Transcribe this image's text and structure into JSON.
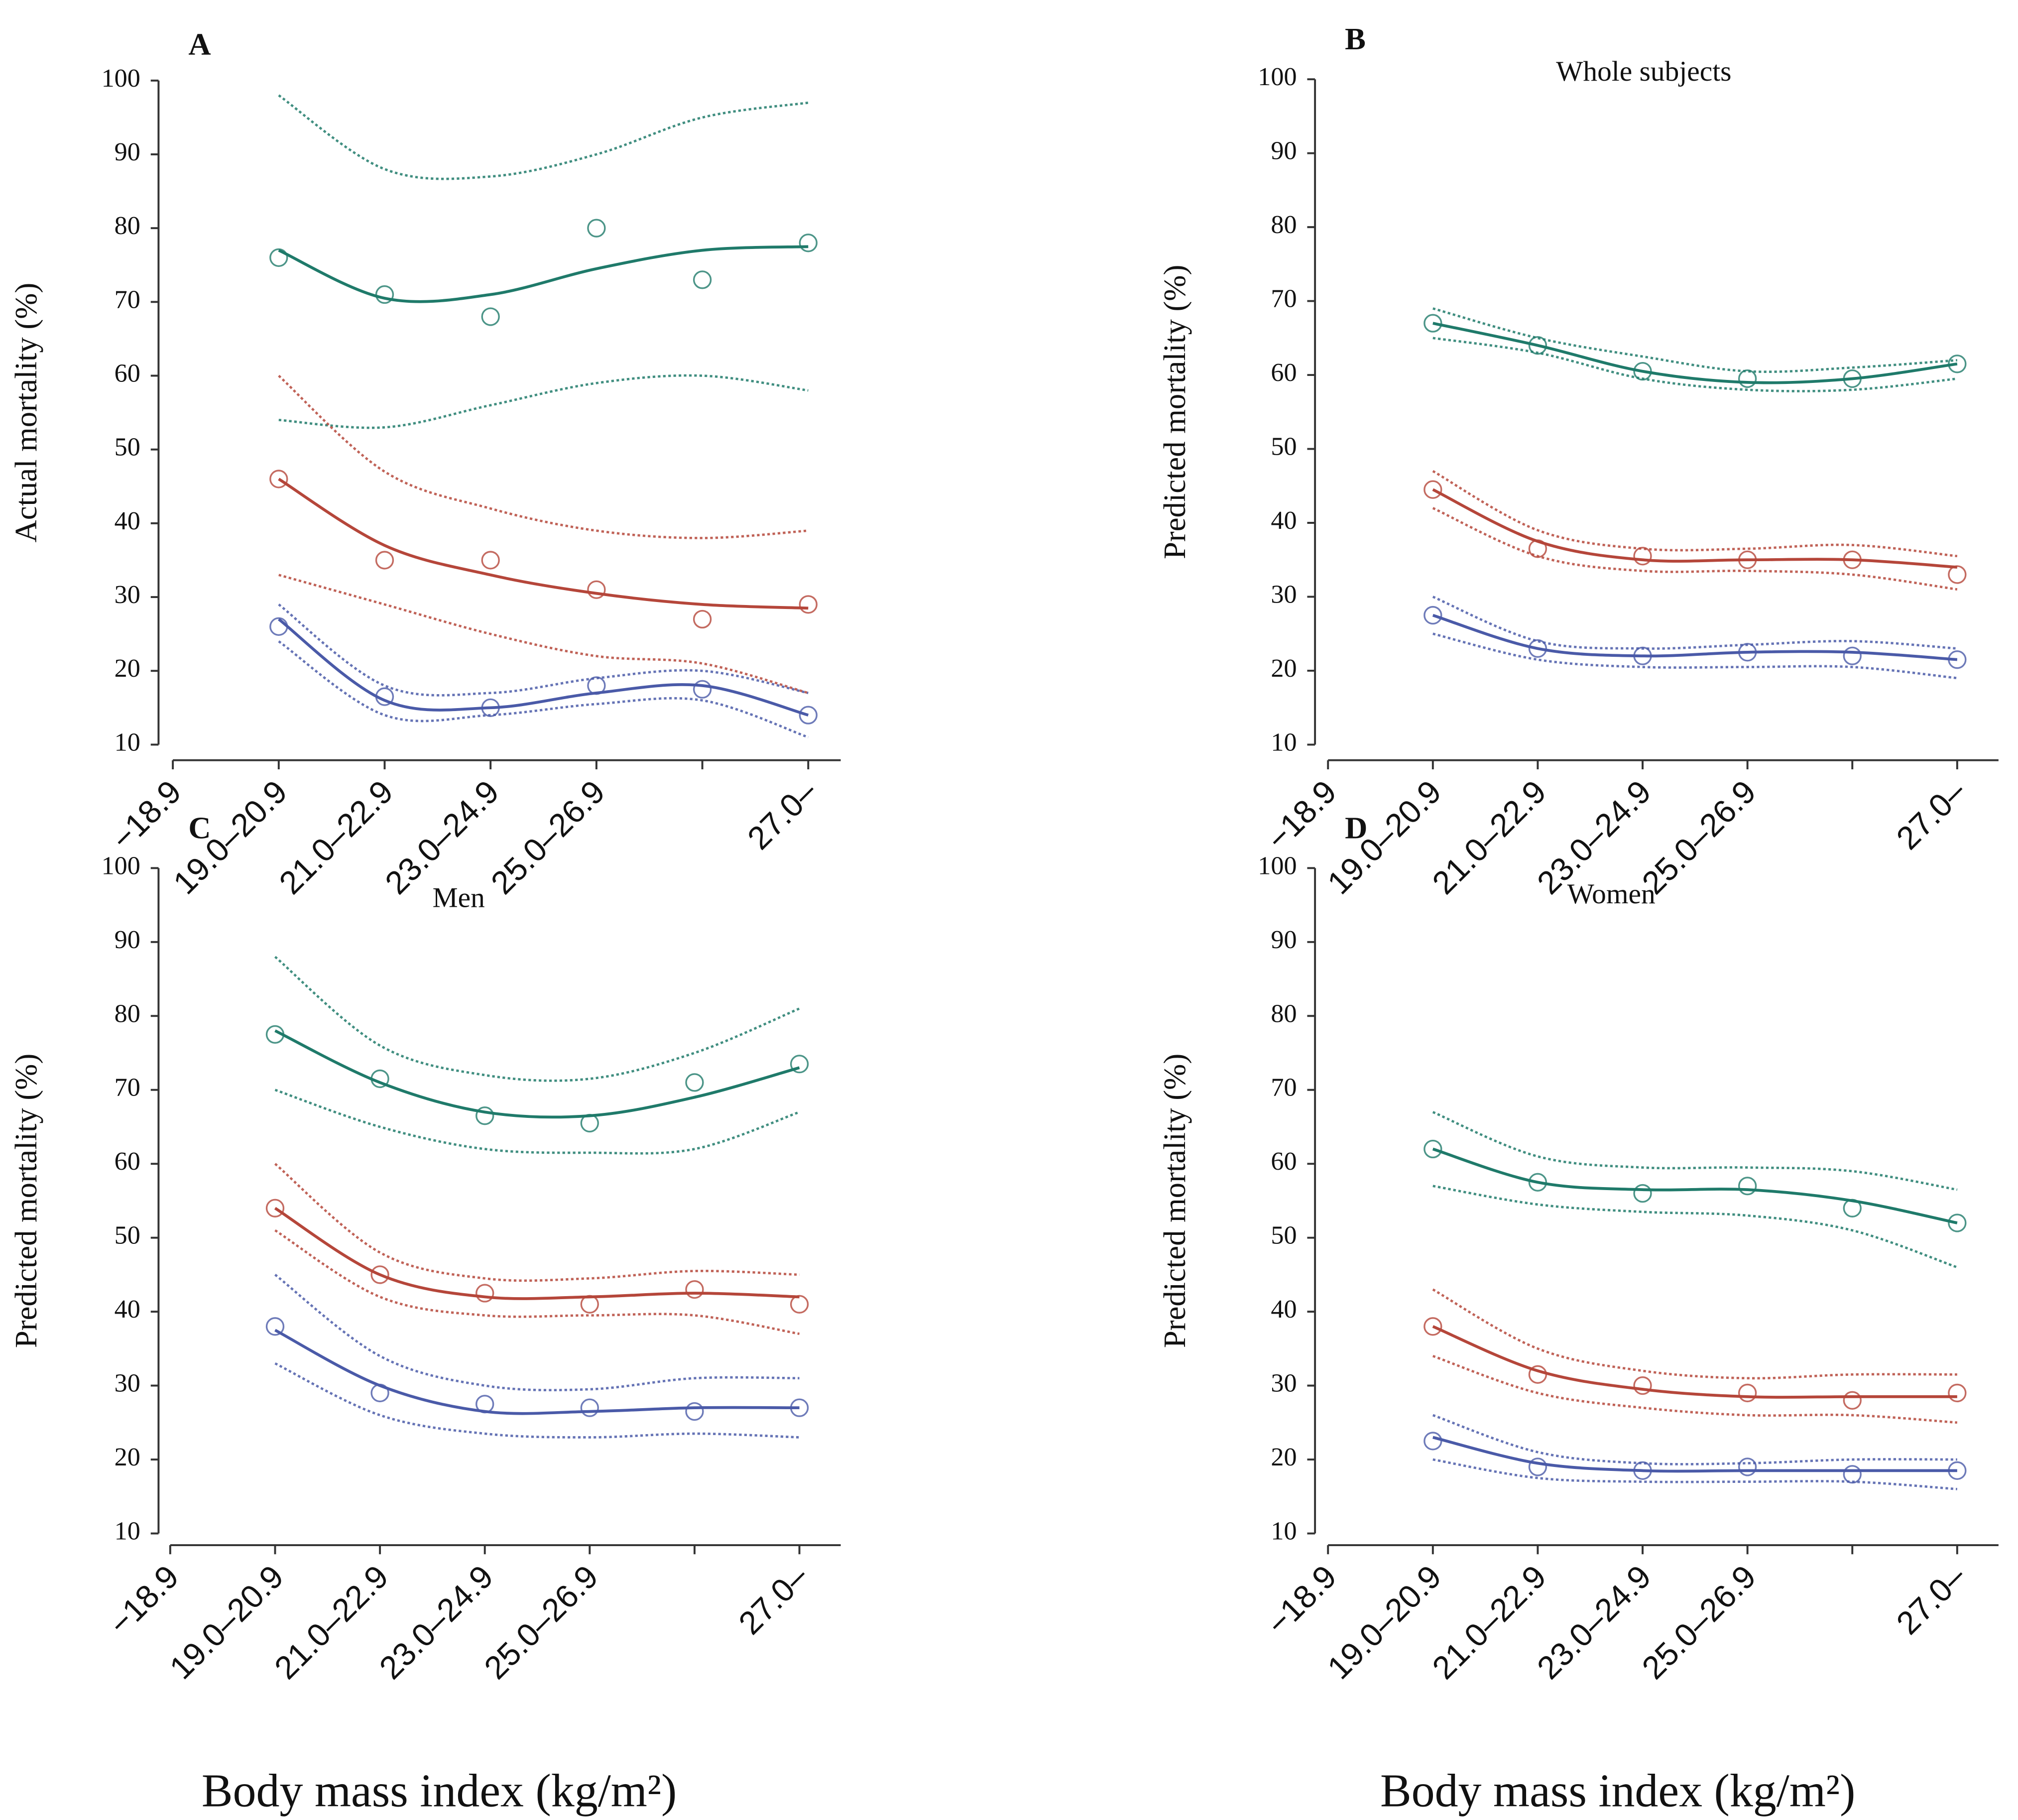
{
  "chart_data": [
    {
      "type": "line",
      "letter": "A",
      "ylabel": "Actual mortality (%)",
      "categories": [
        "−18.9",
        "19.0–20.9",
        "21.0–22.9",
        "23.0–24.9",
        "25.0–26.9",
        null,
        "27.0–"
      ],
      "ylim": [
        10,
        100
      ],
      "yticks": [
        10,
        20,
        30,
        40,
        50,
        60,
        70,
        80,
        90,
        100
      ],
      "groups": [
        {
          "color": "#1f7a6a",
          "points": [
            null,
            76,
            71,
            68,
            80,
            73,
            78
          ],
          "fit": [
            null,
            77,
            70.5,
            71,
            74.5,
            77,
            77.5
          ],
          "upper": [
            null,
            98,
            88,
            87,
            90,
            95,
            97
          ],
          "lower": [
            null,
            54,
            53,
            56,
            59,
            60,
            58
          ]
        },
        {
          "color": "#b5463a",
          "points": [
            null,
            46,
            35,
            35,
            31,
            27,
            29
          ],
          "fit": [
            null,
            46,
            37,
            33,
            30.5,
            29,
            28.5
          ],
          "upper": [
            null,
            60,
            47,
            42,
            39,
            38,
            39
          ],
          "lower": [
            null,
            33,
            29,
            25,
            22,
            21,
            17
          ]
        },
        {
          "color": "#4a5aa8",
          "points": [
            null,
            26,
            16.5,
            15,
            18,
            17.5,
            14
          ],
          "fit": [
            null,
            27,
            16,
            15,
            17,
            18,
            14
          ],
          "upper": [
            null,
            29,
            18,
            17,
            19,
            20,
            17
          ],
          "lower": [
            null,
            24,
            14,
            14,
            15.5,
            16,
            11
          ]
        }
      ]
    },
    {
      "type": "line",
      "letter": "B",
      "subtitle": "Whole subjects",
      "ylabel": "Predicted mortality (%)",
      "categories": [
        "−18.9",
        "19.0–20.9",
        "21.0–22.9",
        "23.0–24.9",
        "25.0–26.9",
        null,
        "27.0–"
      ],
      "ylim": [
        10,
        100
      ],
      "yticks": [
        10,
        20,
        30,
        40,
        50,
        60,
        70,
        80,
        90,
        100
      ],
      "groups": [
        {
          "color": "#1f7a6a",
          "points": [
            null,
            67,
            64,
            60.5,
            59.5,
            59.5,
            61.5
          ],
          "fit": [
            null,
            67,
            64,
            60.5,
            59,
            59.5,
            61.5
          ],
          "upper": [
            null,
            69,
            65,
            62.5,
            60.5,
            61,
            62
          ],
          "lower": [
            null,
            65,
            63,
            59.5,
            58,
            58,
            59.5
          ]
        },
        {
          "color": "#b5463a",
          "points": [
            null,
            44.5,
            36.5,
            35.5,
            35,
            35,
            33
          ],
          "fit": [
            null,
            44.5,
            37.5,
            35,
            35,
            35,
            34
          ],
          "upper": [
            null,
            47,
            39,
            36.5,
            36.5,
            37,
            35.5
          ],
          "lower": [
            null,
            42,
            35.5,
            33.5,
            33.5,
            33,
            31
          ]
        },
        {
          "color": "#4a5aa8",
          "points": [
            null,
            27.5,
            23,
            22,
            22.5,
            22,
            21.5
          ],
          "fit": [
            null,
            27.5,
            23,
            22,
            22.5,
            22.5,
            21.5
          ],
          "upper": [
            null,
            30,
            24,
            23,
            23.5,
            24,
            23
          ],
          "lower": [
            null,
            25,
            21.5,
            20.5,
            20.5,
            20.5,
            19
          ]
        }
      ]
    },
    {
      "type": "line",
      "letter": "C",
      "subtitle": "Men",
      "ylabel": "Predicted mortality (%)",
      "xlabel": "Body mass index (kg/m²)",
      "categories": [
        "−18.9",
        "19.0–20.9",
        "21.0–22.9",
        "23.0–24.9",
        "25.0–26.9",
        null,
        "27.0–"
      ],
      "ylim": [
        10,
        100
      ],
      "yticks": [
        10,
        20,
        30,
        40,
        50,
        60,
        70,
        80,
        90,
        100
      ],
      "groups": [
        {
          "color": "#1f7a6a",
          "points": [
            null,
            77.5,
            71.5,
            66.5,
            65.5,
            71,
            73.5
          ],
          "fit": [
            null,
            78,
            71,
            67,
            66.5,
            69,
            73
          ],
          "upper": [
            null,
            88,
            76,
            72,
            71.5,
            75,
            81
          ],
          "lower": [
            null,
            70,
            65,
            62,
            61.5,
            62,
            67
          ]
        },
        {
          "color": "#b5463a",
          "points": [
            null,
            54,
            45,
            42.5,
            41,
            43,
            41
          ],
          "fit": [
            null,
            54,
            45,
            42,
            42,
            42.5,
            42
          ],
          "upper": [
            null,
            60,
            48,
            44.5,
            44.5,
            45.5,
            45
          ],
          "lower": [
            null,
            51,
            42,
            39.5,
            39.5,
            39.5,
            37
          ]
        },
        {
          "color": "#4a5aa8",
          "points": [
            null,
            38,
            29,
            27.5,
            27,
            26.5,
            27
          ],
          "fit": [
            null,
            37.5,
            30,
            26.5,
            26.5,
            27,
            27
          ],
          "upper": [
            null,
            45,
            34,
            30,
            29.5,
            31,
            31
          ],
          "lower": [
            null,
            33,
            26,
            23.5,
            23,
            23.5,
            23
          ]
        }
      ]
    },
    {
      "type": "line",
      "letter": "D",
      "subtitle": "Women",
      "ylabel": "Predicted mortality (%)",
      "xlabel": "Body mass index (kg/m²)",
      "categories": [
        "−18.9",
        "19.0–20.9",
        "21.0–22.9",
        "23.0–24.9",
        "25.0–26.9",
        null,
        "27.0–"
      ],
      "ylim": [
        10,
        100
      ],
      "yticks": [
        10,
        20,
        30,
        40,
        50,
        60,
        70,
        80,
        90,
        100
      ],
      "groups": [
        {
          "color": "#1f7a6a",
          "points": [
            null,
            62,
            57.5,
            56,
            57,
            54,
            52
          ],
          "fit": [
            null,
            62,
            57.5,
            56.5,
            56.5,
            55,
            52
          ],
          "upper": [
            null,
            67,
            61,
            59.5,
            59.5,
            59,
            56.5
          ],
          "lower": [
            null,
            57,
            54.5,
            53.5,
            53,
            51,
            46
          ]
        },
        {
          "color": "#b5463a",
          "points": [
            null,
            38,
            31.5,
            30,
            29,
            28,
            29
          ],
          "fit": [
            null,
            38,
            32,
            29.5,
            28.5,
            28.5,
            28.5
          ],
          "upper": [
            null,
            43,
            35,
            32,
            31,
            31.5,
            31.5
          ],
          "lower": [
            null,
            34,
            29,
            27,
            26,
            26,
            25
          ]
        },
        {
          "color": "#4a5aa8",
          "points": [
            null,
            22.5,
            19,
            18.5,
            19,
            18,
            18.5
          ],
          "fit": [
            null,
            23,
            19.5,
            18.5,
            18.5,
            18.5,
            18.5
          ],
          "upper": [
            null,
            26,
            21,
            19.5,
            19.5,
            20,
            20
          ],
          "lower": [
            null,
            20,
            17.5,
            17,
            17,
            17,
            16
          ]
        }
      ]
    }
  ]
}
